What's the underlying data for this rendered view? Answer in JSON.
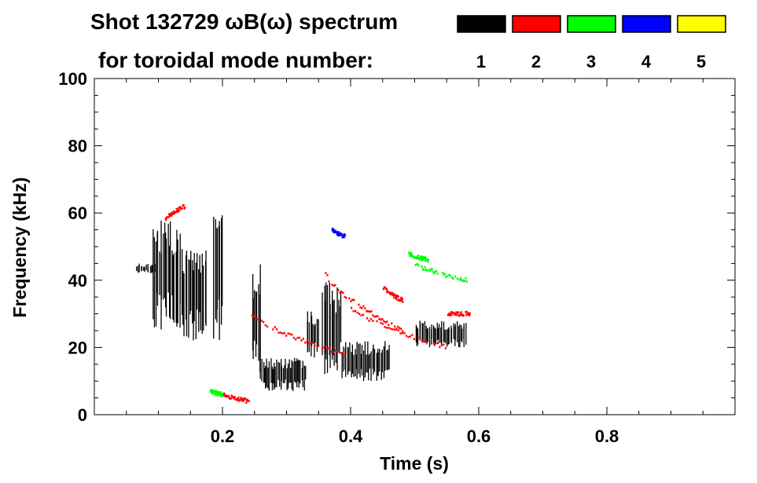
{
  "chart_data": {
    "type": "heatmap",
    "title_line1": "Shot 132729 ωB(ω) spectrum",
    "title_line2": "for toroidal mode number:",
    "xlabel": "Time (s)",
    "ylabel": "Frequency (kHz)",
    "xlim": [
      0.0,
      1.0
    ],
    "ylim": [
      0,
      100
    ],
    "x_ticks": [
      0.2,
      0.4,
      0.6,
      0.8
    ],
    "y_ticks": [
      0,
      20,
      40,
      60,
      80,
      100
    ],
    "grid": false,
    "legend_placement": "top-right",
    "legend": [
      {
        "label": "1",
        "color": "#000000"
      },
      {
        "label": "2",
        "color": "#ff0000"
      },
      {
        "label": "3",
        "color": "#00ff00"
      },
      {
        "label": "4",
        "color": "#0000ff"
      },
      {
        "label": "5",
        "color": "#ffff00"
      }
    ],
    "series": [
      {
        "mode": 1,
        "color": "#000000",
        "regions": [
          {
            "t": [
              0.065,
              0.095
            ],
            "f": [
              42,
              45
            ]
          },
          {
            "t": [
              0.09,
              0.135
            ],
            "f": [
              25,
              58
            ]
          },
          {
            "t": [
              0.135,
              0.175
            ],
            "f": [
              22,
              50
            ]
          },
          {
            "t": [
              0.185,
              0.2
            ],
            "f": [
              22,
              60
            ]
          },
          {
            "t": [
              0.245,
              0.26
            ],
            "f": [
              10,
              45
            ]
          },
          {
            "t": [
              0.26,
              0.33
            ],
            "f": [
              7,
              17
            ]
          },
          {
            "t": [
              0.33,
              0.35
            ],
            "f": [
              16,
              32
            ]
          },
          {
            "t": [
              0.355,
              0.385
            ],
            "f": [
              12,
              40
            ]
          },
          {
            "t": [
              0.385,
              0.46
            ],
            "f": [
              10,
              22
            ]
          },
          {
            "t": [
              0.5,
              0.58
            ],
            "f": [
              20,
              28
            ]
          }
        ]
      },
      {
        "mode": 2,
        "color": "#ff0000",
        "chirps": [
          {
            "t": [
              0.245,
              0.39
            ],
            "f": [
              30,
              18
            ]
          },
          {
            "t": [
              0.36,
              0.48
            ],
            "f": [
              42,
              25
            ]
          },
          {
            "t": [
              0.4,
              0.55
            ],
            "f": [
              32,
              20
            ]
          },
          {
            "t": [
              0.2,
              0.24
            ],
            "f": [
              6,
              4
            ]
          },
          {
            "t": [
              0.55,
              0.585
            ],
            "f": [
              30,
              30
            ]
          },
          {
            "t": [
              0.11,
              0.14
            ],
            "f": [
              58,
              62
            ]
          },
          {
            "t": [
              0.45,
              0.48
            ],
            "f": [
              38,
              34
            ]
          }
        ]
      },
      {
        "mode": 3,
        "color": "#00ff00",
        "chirps": [
          {
            "t": [
              0.5,
              0.58
            ],
            "f": [
              45,
              40
            ]
          },
          {
            "t": [
              0.49,
              0.52
            ],
            "f": [
              48,
              46
            ]
          },
          {
            "t": [
              0.18,
              0.2
            ],
            "f": [
              7,
              6
            ]
          }
        ]
      },
      {
        "mode": 4,
        "color": "#0000ff",
        "chirps": [
          {
            "t": [
              0.37,
              0.39
            ],
            "f": [
              55,
              53
            ]
          }
        ]
      },
      {
        "mode": 5,
        "color": "#ffff00",
        "chirps": []
      }
    ]
  }
}
